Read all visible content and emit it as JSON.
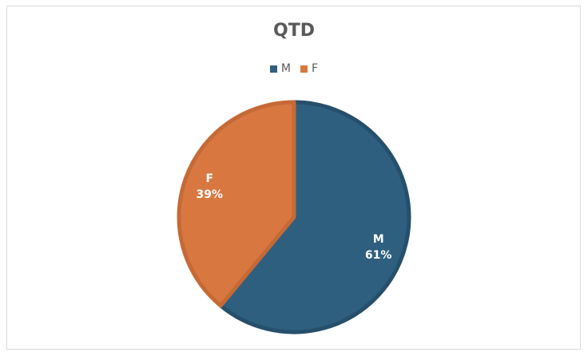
{
  "chart_data": {
    "type": "pie",
    "title": "QTD",
    "categories": [
      "M",
      "F"
    ],
    "values": [
      61,
      39
    ],
    "value_labels": [
      "61%",
      "39%"
    ],
    "colors": [
      "#2e5f7f",
      "#d87840"
    ],
    "legend_position": "top"
  }
}
